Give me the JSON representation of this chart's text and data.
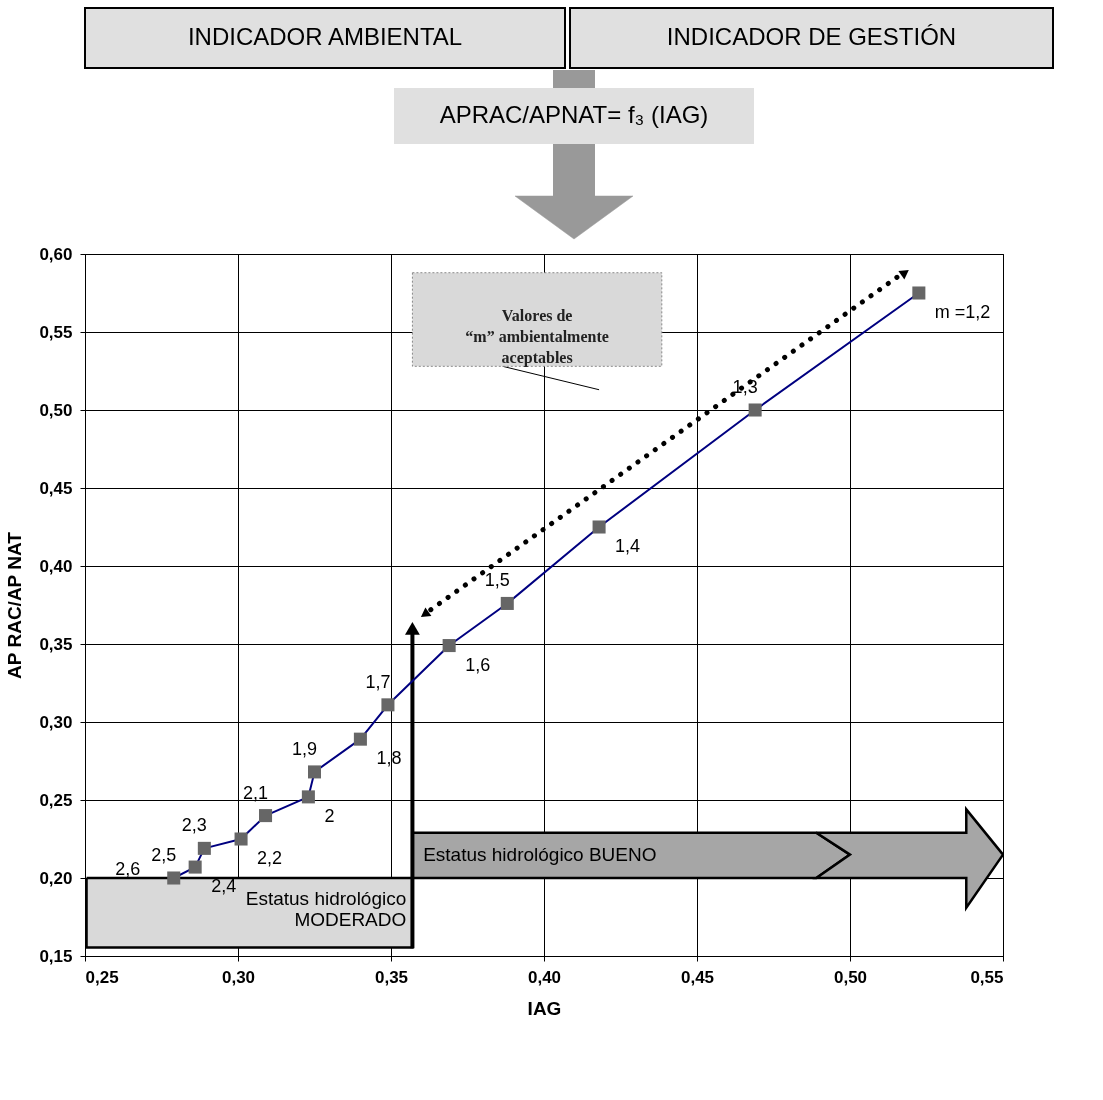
{
  "chart_data": [
    {
      "type": "other",
      "annotations": [
        "INDICADOR AMBIENTAL",
        "INDICADOR DE GESTIÓN",
        "APRAC/APNAT= f₃ (IAG)"
      ]
    },
    {
      "type": "line",
      "xlabel": "IAG",
      "ylabel": "AP RAC/AP NAT",
      "xlim": [
        0.25,
        0.55
      ],
      "ylim": [
        0.15,
        0.6
      ],
      "xticks": [
        {
          "value": 0.25,
          "label": "0,25"
        },
        {
          "value": 0.3,
          "label": "0,30"
        },
        {
          "value": 0.35,
          "label": "0,35"
        },
        {
          "value": 0.4,
          "label": "0,40"
        },
        {
          "value": 0.45,
          "label": "0,45"
        },
        {
          "value": 0.5,
          "label": "0,50"
        },
        {
          "value": 0.55,
          "label": "0,55"
        }
      ],
      "yticks": [
        {
          "value": 0.15,
          "label": "0,15"
        },
        {
          "value": 0.2,
          "label": "0,20"
        },
        {
          "value": 0.25,
          "label": "0,25"
        },
        {
          "value": 0.3,
          "label": "0,30"
        },
        {
          "value": 0.35,
          "label": "0,35"
        },
        {
          "value": 0.4,
          "label": "0,40"
        },
        {
          "value": 0.45,
          "label": "0,45"
        },
        {
          "value": 0.5,
          "label": "0,50"
        },
        {
          "value": 0.55,
          "label": "0,55"
        },
        {
          "value": 0.6,
          "label": "0,60"
        }
      ],
      "grid": true,
      "marker": "square",
      "line_style": "solid",
      "series": [
        {
          "color": "#000080",
          "x": [
            0.279,
            0.286,
            0.289,
            0.301,
            0.309,
            0.323,
            0.325,
            0.34,
            0.349,
            0.369,
            0.388,
            0.418,
            0.469,
            0.5225
          ],
          "values": [
            0.2,
            0.207,
            0.219,
            0.225,
            0.24,
            0.252,
            0.268,
            0.289,
            0.311,
            0.349,
            0.376,
            0.425,
            0.5,
            0.575
          ]
        }
      ],
      "annotations": [
        "Valores de\n“m” ambientalmente\naceptables",
        "Estatus hidrológico BUENO",
        "Estatus hidrológico\nMODERADO",
        "2,6",
        {
          "text": "2,5",
          "x": 0.279,
          "y": 0.2
        },
        {
          "text": "2,4",
          "x": 0.286,
          "y": 0.207
        },
        {
          "text": "2,3",
          "x": 0.289,
          "y": 0.219
        },
        {
          "text": "2,2",
          "x": 0.301,
          "y": 0.225
        },
        {
          "text": "2,1",
          "x": 0.309,
          "y": 0.24
        },
        {
          "text": "2",
          "x": 0.323,
          "y": 0.252
        },
        {
          "text": "1,9",
          "x": 0.325,
          "y": 0.268
        },
        {
          "text": "1,8",
          "x": 0.34,
          "y": 0.289
        },
        {
          "text": "1,7",
          "x": 0.349,
          "y": 0.311
        },
        {
          "text": "1,6",
          "x": 0.369,
          "y": 0.349
        },
        {
          "text": "1,5",
          "x": 0.388,
          "y": 0.376
        },
        {
          "text": "1,4",
          "x": 0.418,
          "y": 0.425
        },
        {
          "text": "1,3",
          "x": 0.469,
          "y": 0.5
        },
        {
          "text": "m =1,2",
          "x": 0.5225,
          "y": 0.575
        }
      ]
    }
  ]
}
